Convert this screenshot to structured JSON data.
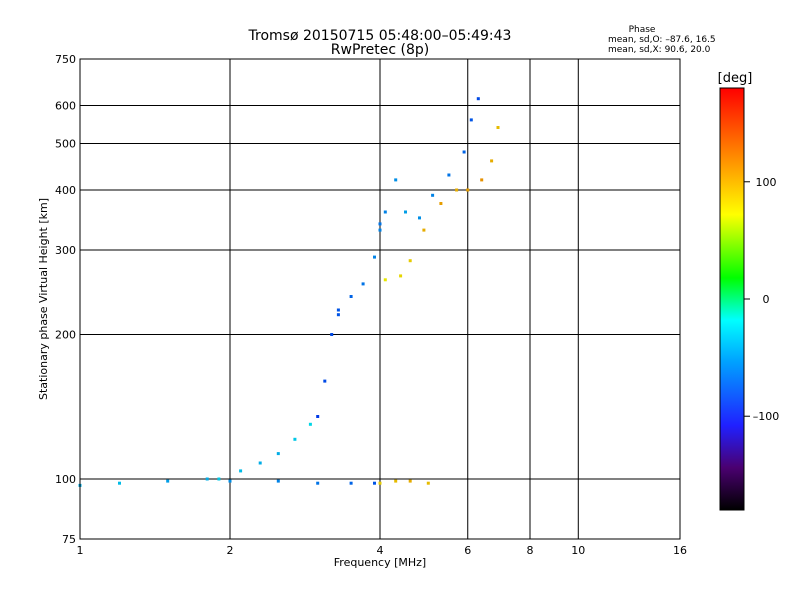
{
  "chart_data": {
    "type": "scatter",
    "title_line1": "Tromsø 20150715 05:48:00–05:49:43",
    "title_line2": "RwPretec (8p)",
    "xlabel": "Frequency [MHz]",
    "ylabel": "Stationary phase Virtual Height [km]",
    "x_scale": "log",
    "y_scale": "log",
    "xlim": [
      1,
      16
    ],
    "ylim": [
      75,
      750
    ],
    "x_ticks": [
      1,
      2,
      4,
      6,
      8,
      10,
      16
    ],
    "x_tick_labels": [
      "1",
      "2",
      "4",
      "6",
      "8",
      "10",
      "16"
    ],
    "y_ticks": [
      75,
      100,
      200,
      300,
      400,
      500,
      600,
      750
    ],
    "y_tick_labels": [
      "75",
      "100",
      "200",
      "300",
      "400",
      "500",
      "600",
      "750"
    ],
    "grid": true,
    "stats": {
      "title": "Phase",
      "line_o": "mean, sd,O: –87.6, 16.5",
      "line_x": "mean, sd,X:  90.6, 20.0"
    },
    "colorbar": {
      "label": "[deg]",
      "range": [
        -180,
        180
      ],
      "ticks": [
        100,
        0,
        -100
      ],
      "tick_labels": [
        "100",
        "0",
        "–100"
      ]
    },
    "series": [
      {
        "x": [
          1.0,
          1.2,
          1.5,
          1.8,
          2.0,
          2.5,
          3.0,
          3.5,
          3.9
        ],
        "y": [
          97,
          98,
          99,
          100,
          99,
          99,
          98,
          98,
          98
        ],
        "phase": [
          -80,
          -75,
          -85,
          -80,
          -90,
          -95,
          -100,
          -105,
          -110
        ]
      },
      {
        "x": [
          4.0,
          4.3,
          4.6,
          5.0
        ],
        "y": [
          98,
          99,
          99,
          98
        ],
        "phase": [
          110,
          115,
          120,
          115
        ]
      },
      {
        "x": [
          1.9,
          2.1,
          2.3,
          2.5,
          2.7,
          2.9
        ],
        "y": [
          100,
          104,
          108,
          113,
          121,
          130
        ],
        "phase": [
          -70,
          -75,
          -80,
          -80,
          -70,
          -65
        ]
      },
      {
        "x": [
          3.0,
          3.1,
          3.2,
          3.3
        ],
        "y": [
          135,
          160,
          200,
          225
        ],
        "phase": [
          -120,
          -115,
          -115,
          -110
        ]
      },
      {
        "x": [
          3.3,
          3.5,
          3.7,
          3.9,
          4.0
        ],
        "y": [
          220,
          240,
          255,
          290,
          330
        ],
        "phase": [
          -110,
          -105,
          -100,
          -95,
          -95
        ]
      },
      {
        "x": [
          4.0,
          4.1,
          4.3,
          4.5,
          4.8,
          5.1,
          5.5,
          5.9,
          6.1,
          6.3
        ],
        "y": [
          340,
          360,
          420,
          360,
          350,
          390,
          430,
          480,
          560,
          620
        ],
        "phase": [
          -100,
          -95,
          -90,
          -85,
          -90,
          -95,
          -100,
          -105,
          -110,
          -115
        ]
      },
      {
        "x": [
          4.1,
          4.4,
          4.6,
          4.9,
          5.3,
          5.7,
          6.0,
          6.4,
          6.7,
          6.9
        ],
        "y": [
          260,
          265,
          285,
          330,
          375,
          400,
          400,
          420,
          460,
          540
        ],
        "phase": [
          100,
          105,
          110,
          120,
          125,
          120,
          125,
          130,
          120,
          115
        ]
      }
    ]
  }
}
